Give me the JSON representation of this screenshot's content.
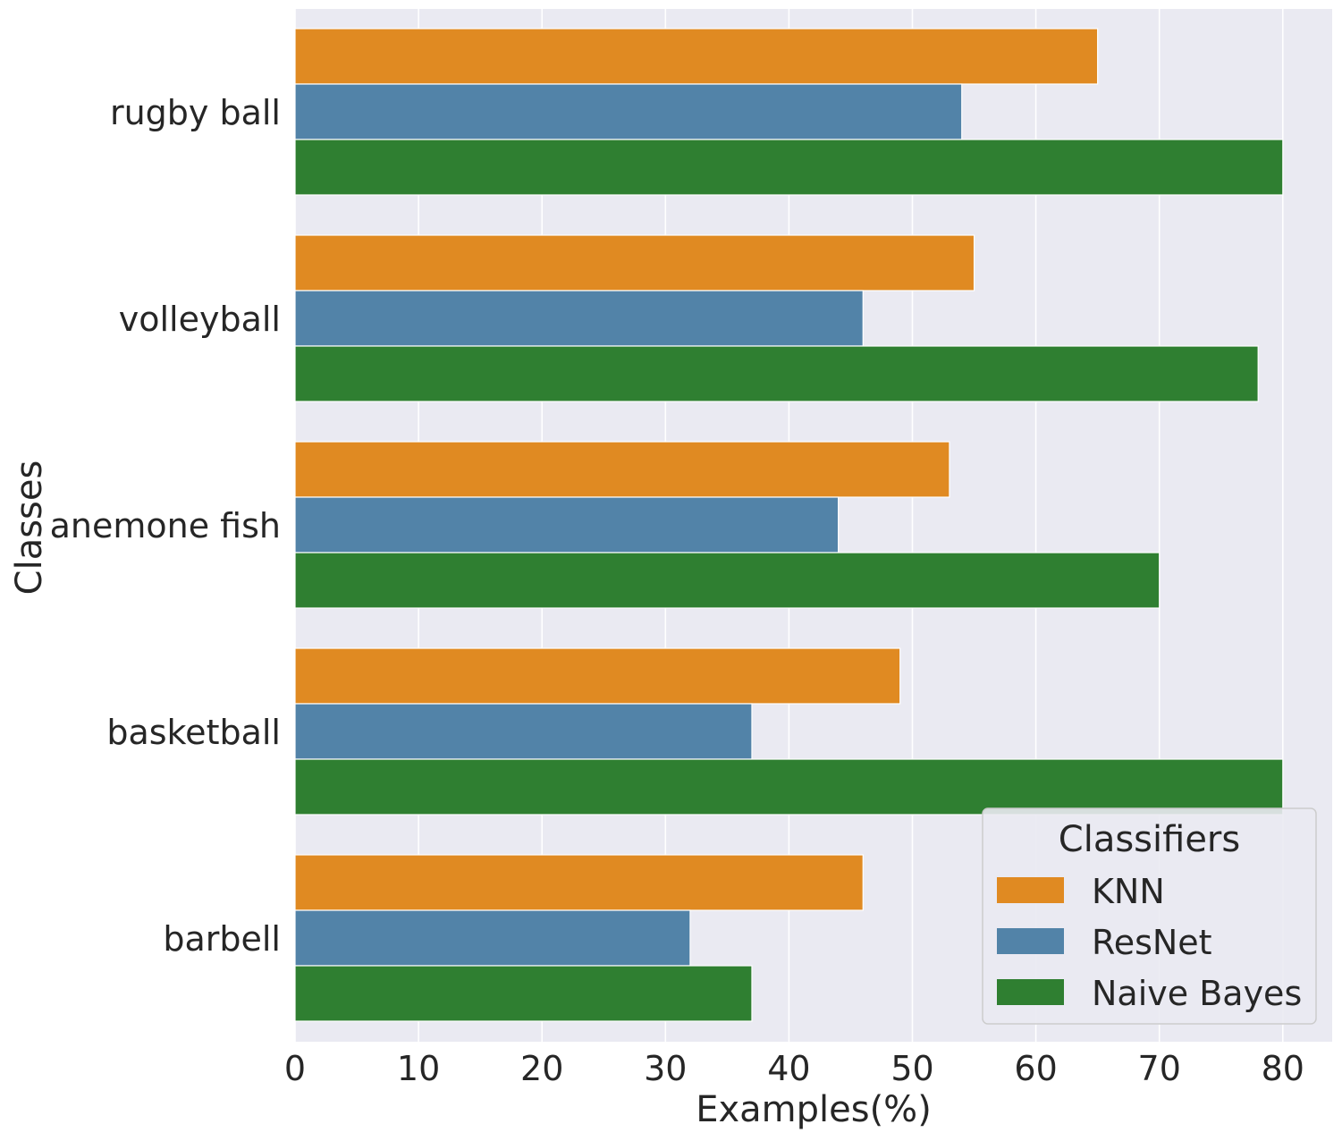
{
  "chart_data": {
    "type": "bar",
    "orientation": "horizontal",
    "categories": [
      "rugby ball",
      "volleyball",
      "anemone fish",
      "basketball",
      "barbell"
    ],
    "series": [
      {
        "name": "KNN",
        "color": "#e08a22",
        "values": [
          65,
          55,
          53,
          49,
          46
        ]
      },
      {
        "name": "ResNet",
        "color": "#5283a8",
        "values": [
          54,
          46,
          44,
          37,
          32
        ]
      },
      {
        "name": "Naive Bayes",
        "color": "#2f7f31",
        "values": [
          80,
          78,
          70,
          80,
          37
        ]
      }
    ],
    "xlabel": "Examples(%)",
    "ylabel": "Classes",
    "xlim": [
      0,
      84
    ],
    "xticks": [
      0,
      10,
      20,
      30,
      40,
      50,
      60,
      70,
      80
    ],
    "grid": true,
    "legend": {
      "title": "Classifiers",
      "position": "lower-right"
    },
    "colors": {
      "background": "#eaeaf2",
      "grid": "#ffffff",
      "text": "#262626"
    }
  }
}
